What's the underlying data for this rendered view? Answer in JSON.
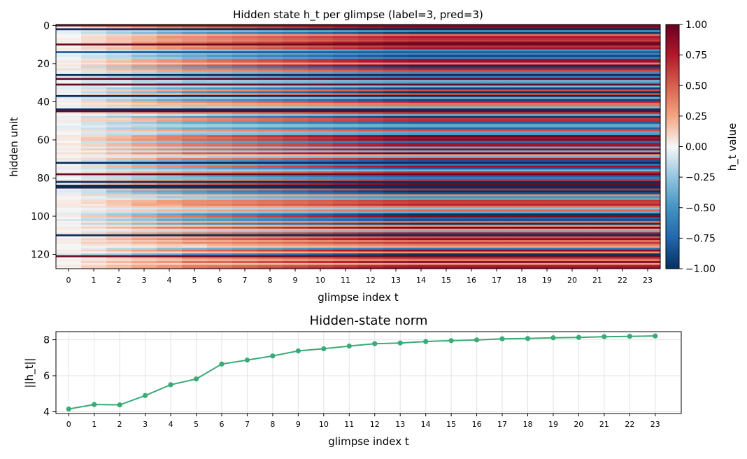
{
  "chart_data": [
    {
      "type": "heatmap",
      "title": "Hidden state h_t per glimpse  (label=3, pred=3)",
      "xlabel": "glimpse index t",
      "ylabel": "hidden unit",
      "x_ticks": [
        "0",
        "1",
        "2",
        "3",
        "4",
        "5",
        "6",
        "7",
        "8",
        "9",
        "10",
        "11",
        "12",
        "13",
        "14",
        "15",
        "16",
        "17",
        "18",
        "19",
        "20",
        "21",
        "22",
        "23"
      ],
      "y_ticks": [
        "0",
        "20",
        "40",
        "60",
        "80",
        "100",
        "120"
      ],
      "columns": 24,
      "rows": 128,
      "colormap": "RdBu_r",
      "colorbar": {
        "label": "h_t value",
        "range": [
          -1,
          1
        ],
        "ticks": [
          "1.00",
          "0.75",
          "0.50",
          "0.25",
          "0.00",
          "−0.25",
          "−0.50",
          "−0.75",
          "−1.00"
        ]
      },
      "row_colors": {
        "0": "#6a0a23",
        "2": "#0b2d5b",
        "10": "#6a0a23",
        "14": "#1f5c9c",
        "26": "#0b2d5b",
        "28": "#6a0a23",
        "31": "#6a0a23",
        "37": "#0b2d5b",
        "44": "#0b2d5b",
        "45": "#6a0a23",
        "72": "#0b2d5b",
        "78": "#6a0a23",
        "82": "#0b2d5b",
        "84": "#0b2d5b",
        "85": "#0b2d5b",
        "110": "#0b2d5b",
        "121": "#6a0a23"
      }
    },
    {
      "type": "line",
      "title": "Hidden-state norm",
      "xlabel": "glimpse index t",
      "ylabel": "||h_t||",
      "x": [
        0,
        1,
        2,
        3,
        4,
        5,
        6,
        7,
        8,
        9,
        10,
        11,
        12,
        13,
        14,
        15,
        16,
        17,
        18,
        19,
        20,
        21,
        22,
        23
      ],
      "y": [
        4.15,
        4.4,
        4.38,
        4.9,
        5.5,
        5.82,
        6.65,
        6.87,
        7.1,
        7.38,
        7.5,
        7.65,
        7.78,
        7.82,
        7.9,
        7.95,
        7.99,
        8.05,
        8.07,
        8.11,
        8.13,
        8.17,
        8.19,
        8.21
      ],
      "y_ticks": [
        "4",
        "6",
        "8"
      ],
      "ylim": [
        3.9,
        8.45
      ],
      "grid": true,
      "color": "#3aaa77"
    }
  ]
}
